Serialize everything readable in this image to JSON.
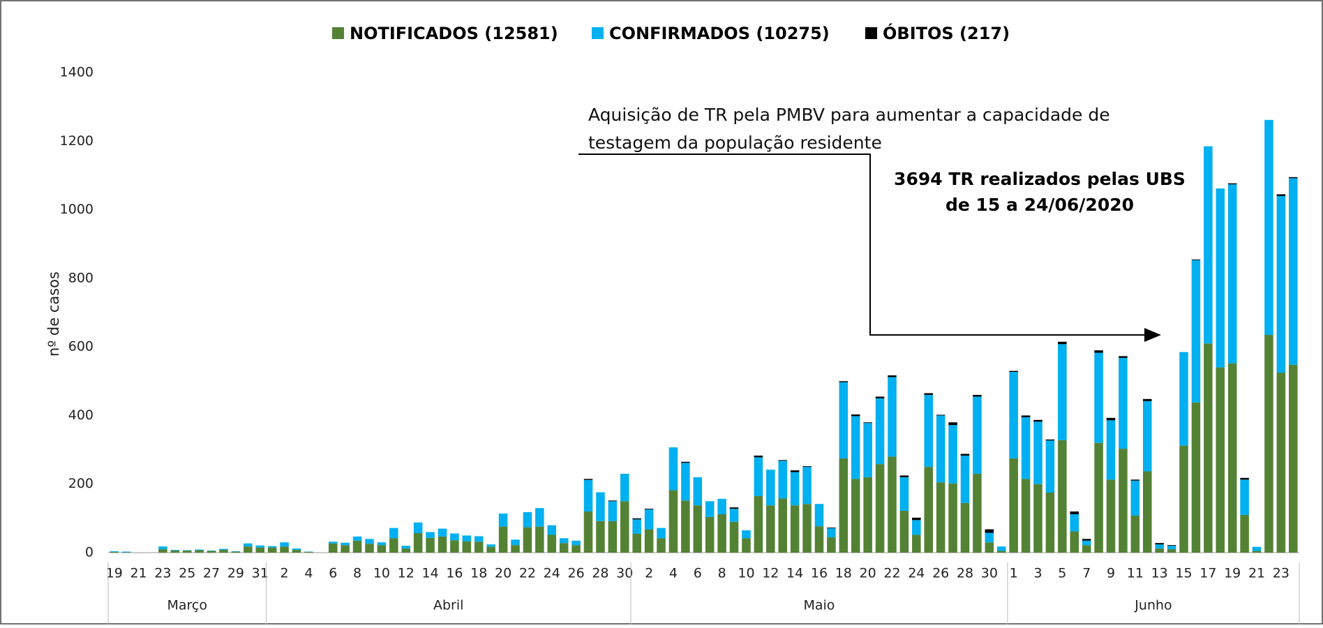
{
  "chart_data": {
    "type": "stacked-bar",
    "y_label": "nº de casos",
    "ylim": [
      0,
      1400
    ],
    "yticks": [
      0,
      200,
      400,
      600,
      800,
      1000,
      1200,
      1400
    ],
    "grid": false,
    "legend_position": "top",
    "categories": [
      "19",
      null,
      "21",
      null,
      "23",
      null,
      "25",
      null,
      "27",
      null,
      "29",
      null,
      "31",
      null,
      "2",
      null,
      "4",
      null,
      "6",
      null,
      "8",
      null,
      "10",
      null,
      "12",
      null,
      "14",
      null,
      "16",
      null,
      "18",
      null,
      "20",
      null,
      "22",
      null,
      "24",
      null,
      "26",
      null,
      "28",
      null,
      "30",
      null,
      "2",
      null,
      "4",
      null,
      "6",
      null,
      "8",
      null,
      "10",
      null,
      "12",
      null,
      "14",
      null,
      "16",
      null,
      "18",
      null,
      "20",
      null,
      "22",
      null,
      "24",
      null,
      "26",
      null,
      "28",
      null,
      "30",
      null,
      "1",
      null,
      "3",
      null,
      "5",
      null,
      "7",
      null,
      "9",
      null,
      "11",
      null,
      "13",
      null,
      "15",
      null,
      "17",
      null,
      "19",
      null,
      "21",
      null,
      "23",
      null
    ],
    "months": [
      "Março",
      "Abril",
      "Maio",
      "Junho"
    ],
    "series": [
      {
        "name": "NOTIFICADOS (12581)",
        "color": "#548235",
        "values": [
          2,
          1,
          0,
          0,
          10,
          6,
          6,
          7,
          5,
          8,
          3,
          18,
          15,
          15,
          18,
          8,
          2,
          0,
          27,
          22,
          35,
          26,
          22,
          42,
          12,
          57,
          43,
          47,
          36,
          33,
          32,
          17,
          76,
          22,
          74,
          76,
          52,
          28,
          22,
          120,
          92,
          92,
          150,
          55,
          68,
          42,
          182,
          152,
          138,
          104,
          112,
          90,
          42,
          165,
          138,
          158,
          138,
          142,
          77,
          45,
          275,
          215,
          220,
          258,
          280,
          122,
          52,
          250,
          205,
          202,
          145,
          230,
          30,
          5,
          275,
          215,
          200,
          175,
          328,
          62,
          22,
          320,
          213,
          303,
          108,
          237,
          12,
          10,
          312,
          438,
          610,
          540,
          552,
          110,
          5,
          635,
          525,
          548
        ]
      },
      {
        "name": "CONFIRMADOS (10275)",
        "color": "#00b0f0",
        "values": [
          2,
          2,
          0,
          0,
          8,
          2,
          1,
          2,
          1,
          3,
          1,
          9,
          6,
          4,
          12,
          4,
          1,
          0,
          5,
          7,
          12,
          14,
          8,
          30,
          8,
          31,
          17,
          23,
          20,
          17,
          16,
          7,
          38,
          16,
          44,
          54,
          28,
          14,
          13,
          92,
          84,
          58,
          80,
          42,
          58,
          30,
          125,
          110,
          82,
          46,
          45,
          38,
          23,
          113,
          104,
          110,
          97,
          108,
          65,
          26,
          222,
          183,
          158,
          192,
          232,
          98,
          43,
          210,
          195,
          170,
          138,
          225,
          28,
          13,
          252,
          180,
          182,
          152,
          280,
          50,
          13,
          263,
          173,
          265,
          102,
          205,
          12,
          10,
          273,
          415,
          575,
          522,
          522,
          103,
          12,
          627,
          515,
          544
        ]
      },
      {
        "name": "ÓBITOS (217)",
        "color": "#000000",
        "values": [
          0,
          0,
          0,
          0,
          0,
          0,
          0,
          0,
          0,
          0,
          0,
          0,
          0,
          0,
          0,
          0,
          0,
          0,
          0,
          0,
          0,
          0,
          0,
          0,
          0,
          0,
          0,
          0,
          0,
          0,
          0,
          0,
          0,
          0,
          0,
          0,
          0,
          0,
          0,
          3,
          0,
          2,
          0,
          3,
          2,
          0,
          0,
          3,
          0,
          0,
          0,
          4,
          0,
          5,
          0,
          2,
          5,
          2,
          0,
          2,
          3,
          5,
          2,
          5,
          5,
          5,
          7,
          5,
          2,
          8,
          5,
          5,
          10,
          0,
          3,
          5,
          5,
          3,
          7,
          8,
          5,
          7,
          7,
          5,
          3,
          6,
          4,
          2,
          0,
          2,
          0,
          0,
          3,
          5,
          0,
          0,
          5,
          3
        ]
      }
    ],
    "annotations": [
      {
        "lines": [
          "Aquisição de TR pela PMBV para aumentar a capacidade de",
          "testagem da população residente"
        ]
      },
      {
        "lines": [
          "3694 TR realizados pelas UBS",
          "de 15 a 24/06/2020"
        ]
      }
    ]
  }
}
